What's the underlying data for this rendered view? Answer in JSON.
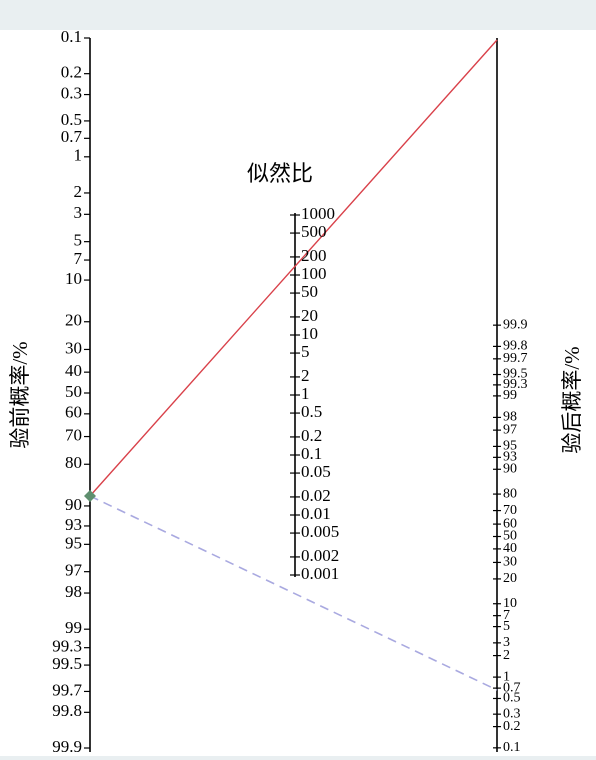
{
  "title": "似然比",
  "left_axis": {
    "label": "验前概率/%",
    "ticks": [
      "0.1",
      "0.2",
      "0.3",
      "0.5",
      "0.7",
      "1",
      "2",
      "3",
      "5",
      "7",
      "10",
      "20",
      "30",
      "40",
      "50",
      "60",
      "70",
      "80",
      "90",
      "93",
      "95",
      "97",
      "98",
      "99",
      "99.3",
      "99.5",
      "99.7",
      "99.8",
      "99.9"
    ]
  },
  "middle_axis": {
    "ticks": [
      "1000",
      "500",
      "200",
      "100",
      "50",
      "20",
      "10",
      "5",
      "2",
      "1",
      "0.5",
      "0.2",
      "0.1",
      "0.05",
      "0.02",
      "0.01",
      "0.005",
      "0.002",
      "0.001"
    ]
  },
  "right_axis": {
    "label": "验后概率/%",
    "ticks": [
      "99.9",
      "99.8",
      "99.7",
      "99.5",
      "99.3",
      "99",
      "98",
      "97",
      "95",
      "93",
      "90",
      "80",
      "70",
      "60",
      "50",
      "40",
      "30",
      "20",
      "10",
      "7",
      "5",
      "3",
      "2",
      "1",
      "0.7",
      "0.5",
      "0.3",
      "0.2",
      "0.1"
    ]
  }
}
